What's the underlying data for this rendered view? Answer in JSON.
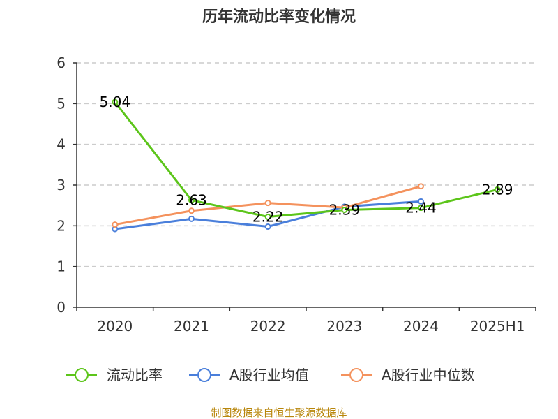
{
  "chart_data": {
    "type": "line",
    "title": "历年流动比率变化情况",
    "categories": [
      "2020",
      "2021",
      "2022",
      "2023",
      "2024",
      "2025H1"
    ],
    "ylim": [
      0,
      6
    ],
    "yticks": [
      0,
      1,
      2,
      3,
      4,
      5,
      6
    ],
    "grid": true,
    "legend_position": "bottom",
    "series": [
      {
        "name": "流动比率",
        "color": "#5cc51a",
        "values": [
          5.04,
          2.63,
          2.22,
          2.39,
          2.44,
          2.89
        ],
        "labels": [
          "5.04",
          "2.63",
          "2.22",
          "2.39",
          "2.44",
          "2.89"
        ]
      },
      {
        "name": "A股行业均值",
        "color": "#4a7fdb",
        "values": [
          1.92,
          2.17,
          1.98,
          2.47,
          2.6,
          null
        ],
        "labels": []
      },
      {
        "name": "A股行业中位数",
        "color": "#f4925d",
        "values": [
          2.03,
          2.37,
          2.56,
          2.45,
          2.97,
          null
        ],
        "labels": []
      }
    ]
  },
  "source_text": "制图数据来自恒生聚源数据库"
}
